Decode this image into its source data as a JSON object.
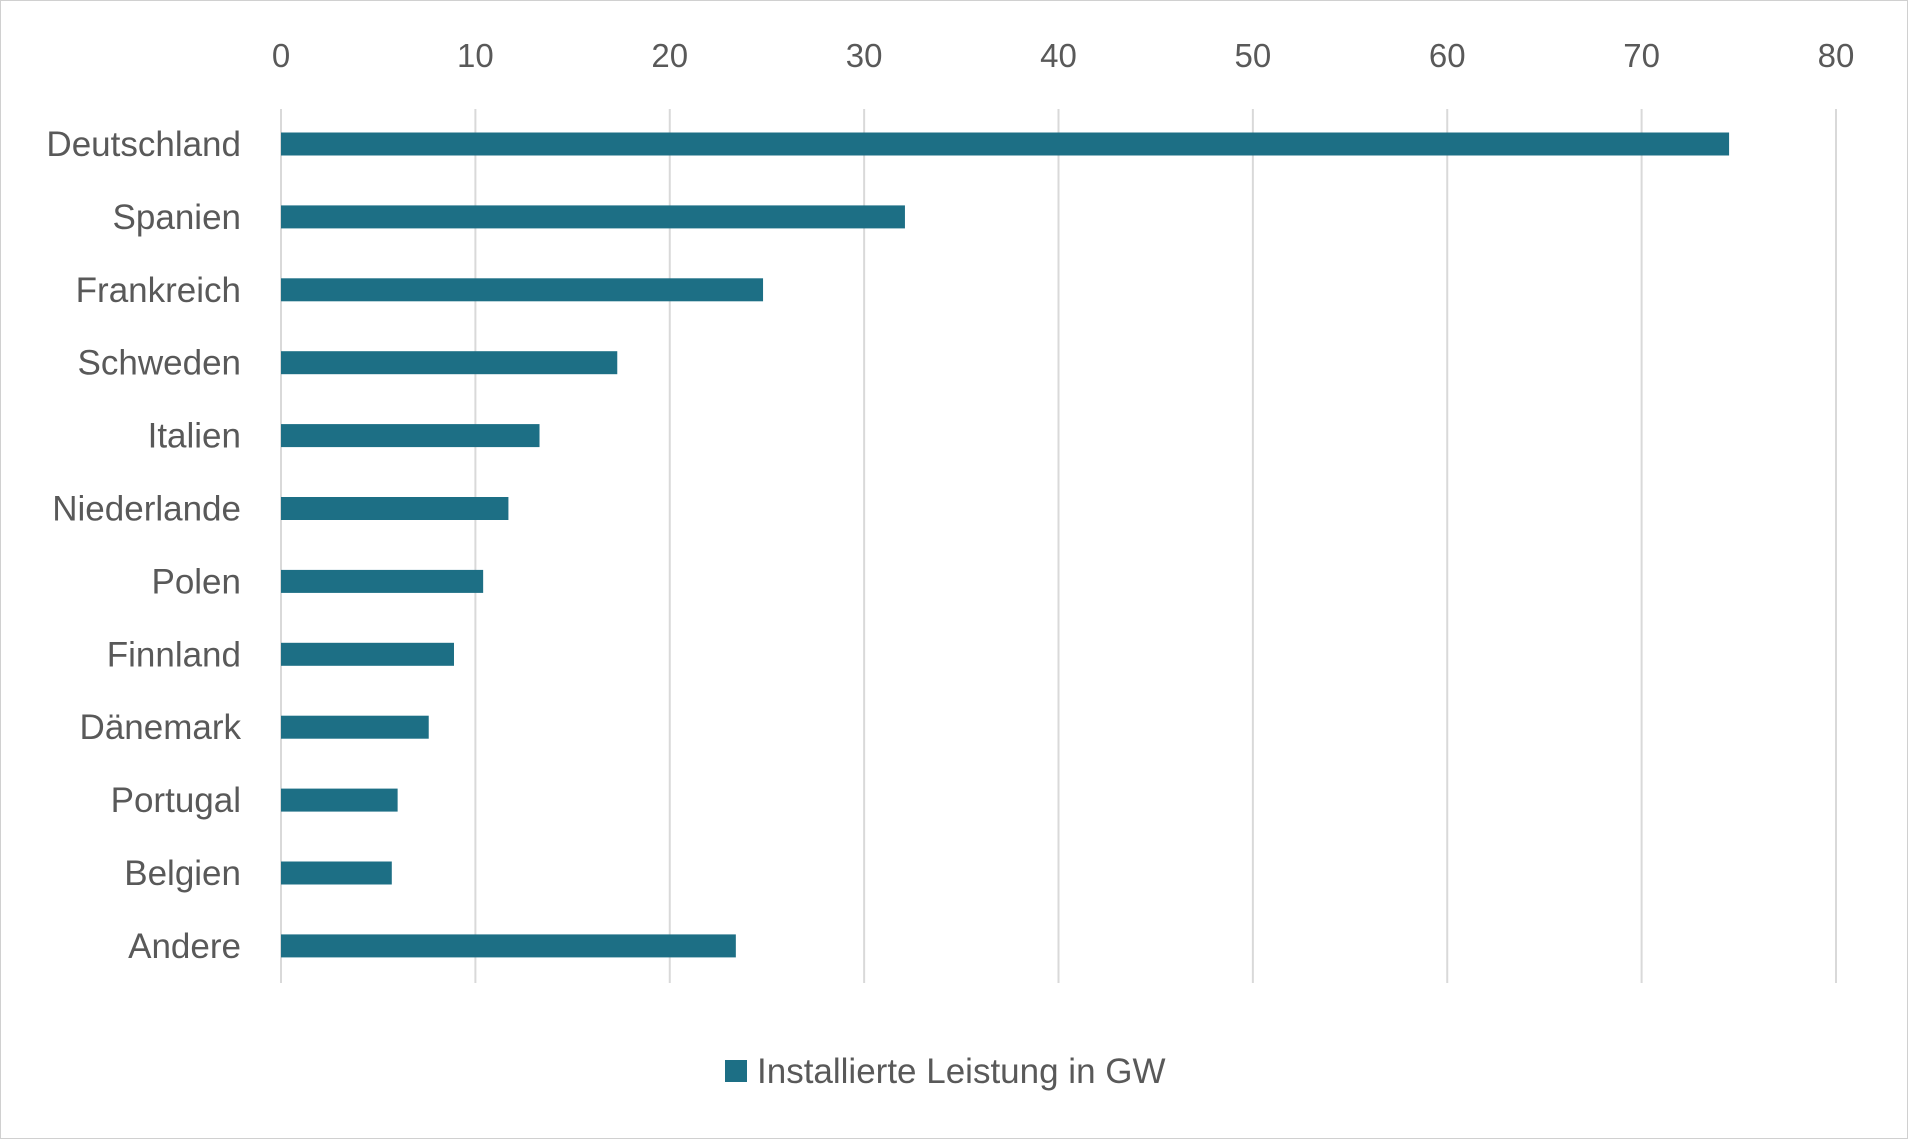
{
  "chart_data": {
    "type": "bar",
    "orientation": "horizontal",
    "title": "",
    "xlabel": "",
    "ylabel": "",
    "xlim": [
      0,
      80
    ],
    "x_ticks": [
      0,
      10,
      20,
      30,
      40,
      50,
      60,
      70,
      80
    ],
    "x_axis_position": "top",
    "grid": true,
    "legend_position": "bottom",
    "categories": [
      "Deutschland",
      "Spanien",
      "Frankreich",
      "Schweden",
      "Italien",
      "Niederlande",
      "Polen",
      "Finnland",
      "Dänemark",
      "Portugal",
      "Belgien",
      "Andere"
    ],
    "series": [
      {
        "name": "Installierte Leistung in GW",
        "color": "#1d6f85",
        "values": [
          74.5,
          32.1,
          24.8,
          17.3,
          13.3,
          11.7,
          10.4,
          8.9,
          7.6,
          6.0,
          5.7,
          23.4
        ]
      }
    ]
  }
}
